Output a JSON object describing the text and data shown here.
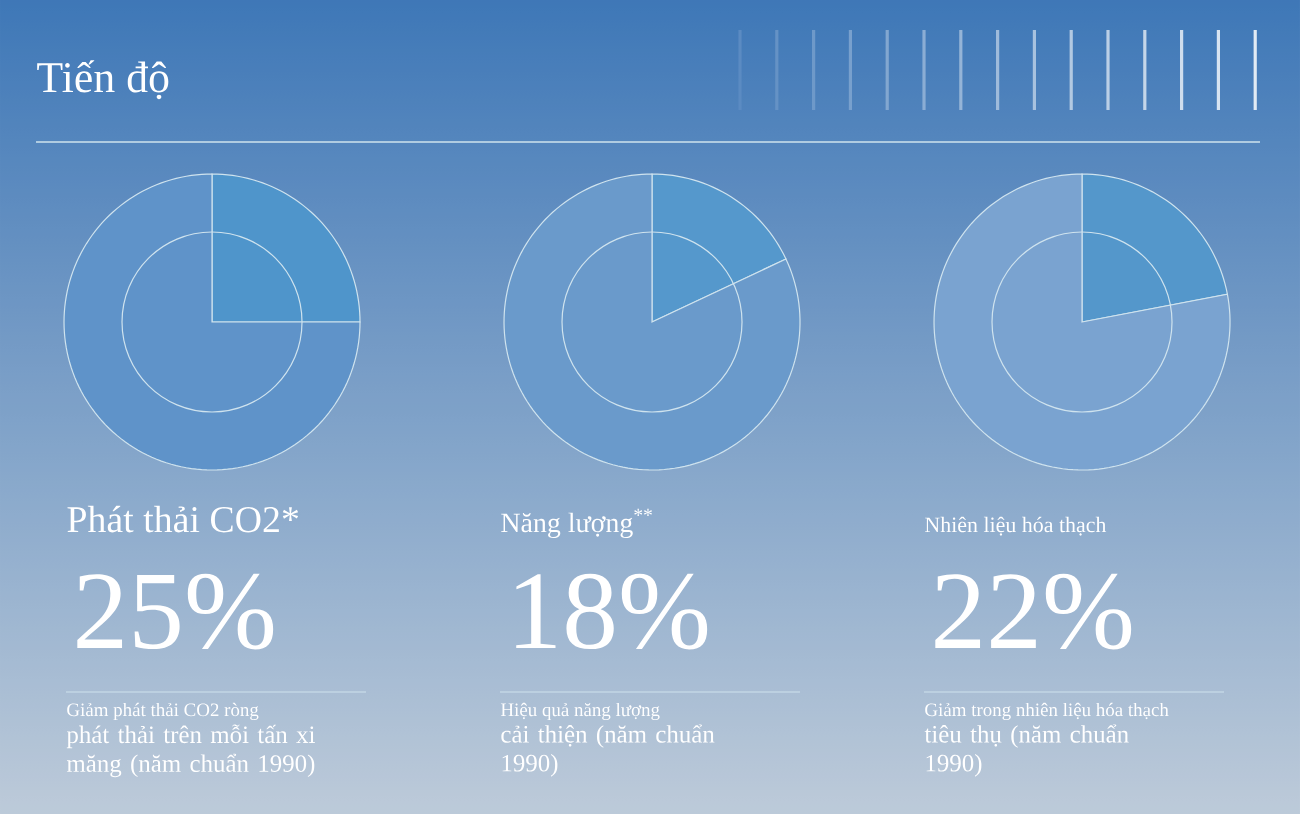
{
  "chart_data": [
    {
      "type": "other",
      "title": "Tiến độ"
    },
    {
      "type": "pie",
      "title": "Phát thải CO2*",
      "categories": [
        null,
        null
      ],
      "values": [
        25,
        75
      ],
      "colors": [
        "#4f95cb",
        "#5f93c9"
      ],
      "subtitle": "25%",
      "annotations": [
        "Giảm phát thải CO2 ròng",
        "phát thải trên mỗi tấn xi măng (năm chuẩn 1990)"
      ]
    },
    {
      "type": "pie",
      "title": "Năng lượng$^{**}$",
      "categories": [
        null,
        null
      ],
      "values": [
        18,
        82
      ],
      "colors": [
        "#5598cc",
        "#6a9acb"
      ],
      "subtitle": "18%",
      "annotations": [
        "Hiệu quả năng lượng",
        "cải thiện (năm chuẩn 1990)"
      ]
    },
    {
      "type": "pie",
      "title": "Nhiên liệu hóa thạch",
      "categories": [
        null,
        null
      ],
      "values": [
        22,
        78
      ],
      "colors": [
        "#5497cb",
        "#7aa3d0"
      ],
      "subtitle": "22%",
      "annotations": [
        "Giảm trong nhiên liệu hóa thạch",
        "tiêu thụ (năm chuẩn 1990)"
      ]
    }
  ]
}
